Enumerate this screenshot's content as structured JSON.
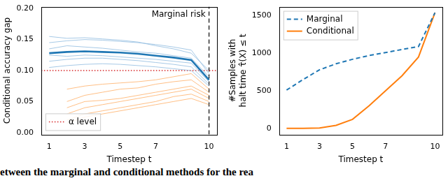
{
  "chart_data": [
    {
      "type": "line",
      "xlabel": "Timestep t",
      "ylabel": "Conditional accuracy gap",
      "x": [
        1,
        2,
        3,
        4,
        5,
        6,
        7,
        8,
        9,
        10
      ],
      "xlim": [
        0.55,
        10.45
      ],
      "xticks": [
        1,
        3,
        5,
        7,
        10
      ],
      "ylim": [
        -0.003,
        0.203
      ],
      "yticks": [
        {
          "value": 0,
          "label": "0.00"
        },
        {
          "value": 0.05,
          "label": "0.05"
        },
        {
          "value": 0.1,
          "label": "0.10"
        },
        {
          "value": 0.15,
          "label": "0.15"
        },
        {
          "value": 0.2,
          "label": "0.20"
        }
      ],
      "grid": false,
      "legend": "lower left",
      "series": [
        {
          "color": "#1f77b4",
          "line_style": "thick",
          "values": [
            0.128,
            0.13,
            0.131,
            0.13,
            0.129,
            0.127,
            0.124,
            0.121,
            0.117,
            0.085
          ]
        },
        {
          "color": "#8fbbe0",
          "values": [
            0.145,
            0.148,
            0.15,
            0.149,
            0.147,
            0.145,
            0.142,
            0.138,
            0.133,
            0.095
          ]
        },
        {
          "color": "#8fbbe0",
          "values": [
            0.115,
            0.118,
            0.12,
            0.12,
            0.118,
            0.116,
            0.113,
            0.11,
            0.106,
            0.078
          ]
        },
        {
          "color": "#8fbbe0",
          "values": [
            0.135,
            0.14,
            0.138,
            0.136,
            0.133,
            0.13,
            0.128,
            0.124,
            0.12,
            0.09
          ]
        },
        {
          "color": "#8fbbe0",
          "values": [
            0.105,
            0.108,
            0.11,
            0.111,
            0.11,
            0.108,
            0.106,
            0.103,
            0.1,
            0.075
          ]
        },
        {
          "color": "#8fbbe0",
          "values": [
            0.155,
            0.152,
            0.153,
            0.151,
            0.149,
            0.146,
            0.14,
            0.135,
            0.128,
            0.1
          ]
        },
        {
          "color": "#8fbbe0",
          "values": [
            0.125,
            0.123,
            0.125,
            0.124,
            0.122,
            0.12,
            0.118,
            0.115,
            0.112,
            0.082
          ]
        },
        {
          "color": "#ffae66",
          "values": [
            null,
            0.03,
            0.04,
            0.045,
            0.05,
            0.055,
            0.06,
            0.065,
            0.07,
            0.055
          ]
        },
        {
          "color": "#ffae66",
          "values": [
            null,
            0.05,
            0.06,
            0.065,
            0.07,
            0.072,
            0.078,
            0.082,
            0.085,
            0.065
          ]
        },
        {
          "color": "#ffae66",
          "values": [
            null,
            0.015,
            0.025,
            0.03,
            0.035,
            0.04,
            0.045,
            0.05,
            0.055,
            0.045
          ]
        },
        {
          "color": "#ffae66",
          "values": [
            null,
            0.07,
            0.075,
            0.078,
            0.08,
            0.082,
            0.085,
            0.09,
            0.095,
            0.07
          ]
        },
        {
          "color": "#ffae66",
          "values": [
            null,
            0.04,
            0.05,
            0.052,
            0.055,
            0.06,
            0.065,
            0.07,
            0.075,
            0.06
          ]
        },
        {
          "color": "#ffae66",
          "values": [
            null,
            0.02,
            0.03,
            0.035,
            0.04,
            0.045,
            0.05,
            0.058,
            0.062,
            0.05
          ]
        }
      ],
      "hlines": [
        {
          "value": 0.1,
          "name": "α level",
          "color": "#d62728",
          "line_style": "dotted"
        }
      ],
      "vlines": [
        {
          "value": 10,
          "label": "Marginal risk",
          "color": "#000000",
          "line_style": "dashed"
        }
      ]
    },
    {
      "type": "line",
      "xlabel": "Timestep t",
      "ylabel": [
        "#Samples with",
        "halt time τ̂(X) ≤ t"
      ],
      "x": [
        1,
        2,
        3,
        4,
        5,
        6,
        7,
        8,
        9,
        10
      ],
      "xlim": [
        0.55,
        10.45
      ],
      "xticks": [
        1,
        3,
        5,
        7,
        10
      ],
      "ylim": [
        -80,
        1620
      ],
      "yticks": [
        0,
        500,
        1000,
        1500
      ],
      "grid": false,
      "legend": "upper left",
      "series": [
        {
          "name": "Marginal",
          "color": "#1f77b4",
          "line_style": "dashed",
          "values": [
            510,
            650,
            780,
            860,
            920,
            970,
            1010,
            1050,
            1090,
            1540
          ]
        },
        {
          "name": "Conditional",
          "color": "#ff7f0e",
          "line_style": "solid",
          "values": [
            0,
            0,
            5,
            40,
            120,
            300,
            500,
            700,
            950,
            1540
          ]
        }
      ]
    }
  ],
  "caption": "etween the marginal and conditional methods for the rea"
}
